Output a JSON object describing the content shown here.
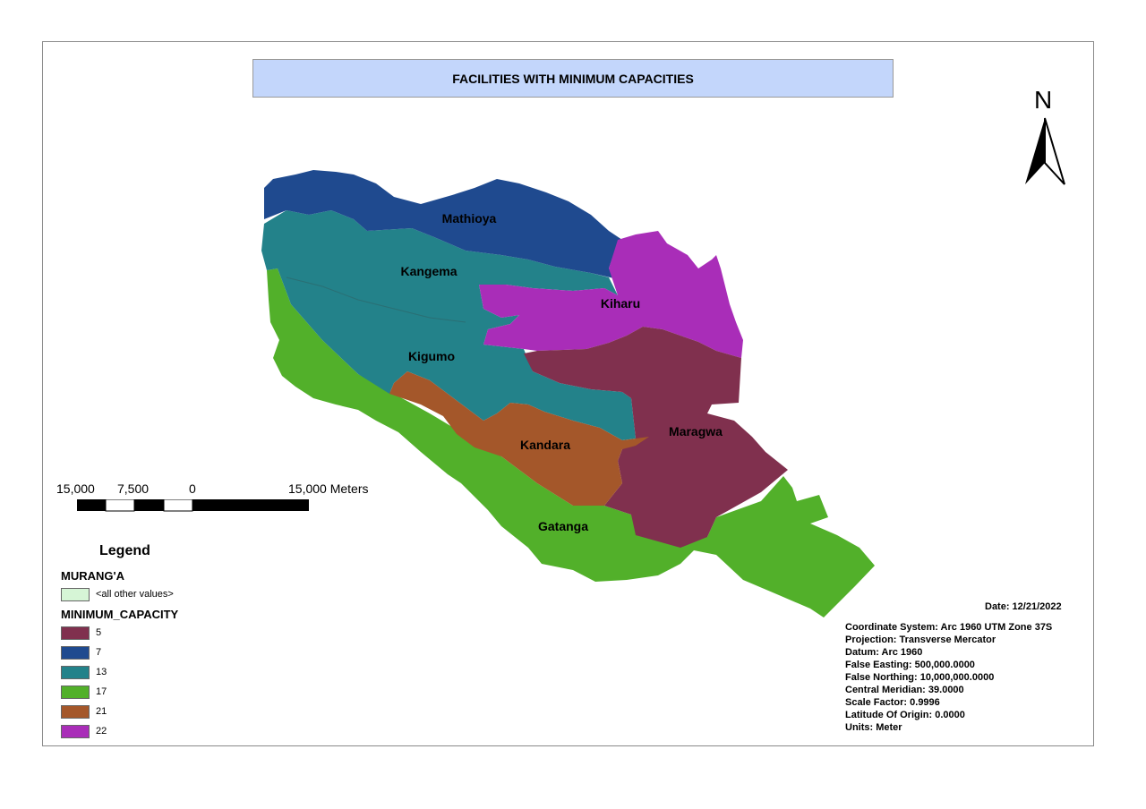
{
  "title": "FACILITIES WITH MINIMUM CAPACITIES",
  "north_letter": "N",
  "scale": {
    "labels": [
      "15,000",
      "7,500",
      "0",
      "15,000 Meters"
    ]
  },
  "legend": {
    "heading": "Legend",
    "layer1": "MURANG'A",
    "other_values": "<all other values>",
    "other_color": "#d6f5d6",
    "layer2": "MINIMUM_CAPACITY",
    "classes": [
      {
        "value": "5",
        "color": "#80304e"
      },
      {
        "value": "7",
        "color": "#1f4a8f"
      },
      {
        "value": "13",
        "color": "#23828a"
      },
      {
        "value": "17",
        "color": "#52b02a"
      },
      {
        "value": "21",
        "color": "#a4572a"
      },
      {
        "value": "22",
        "color": "#a92db8"
      }
    ]
  },
  "regions": [
    {
      "name": "Mathioya",
      "capacity": 7
    },
    {
      "name": "Kangema",
      "capacity": 13
    },
    {
      "name": "Kiharu",
      "capacity": 22
    },
    {
      "name": "Kigumo",
      "capacity": 13
    },
    {
      "name": "Maragwa",
      "capacity": 5
    },
    {
      "name": "Kandara",
      "capacity": 21
    },
    {
      "name": "Gatanga",
      "capacity": 17
    }
  ],
  "date": "Date: 12/21/2022",
  "projection_info": [
    "Coordinate System: Arc 1960 UTM Zone 37S",
    "Projection: Transverse Mercator",
    "Datum: Arc 1960",
    "False Easting: 500,000.0000",
    "False Northing: 10,000,000.0000",
    "Central Meridian: 39.0000",
    "Scale Factor: 0.9996",
    "Latitude Of Origin: 0.0000",
    "Units: Meter"
  ]
}
